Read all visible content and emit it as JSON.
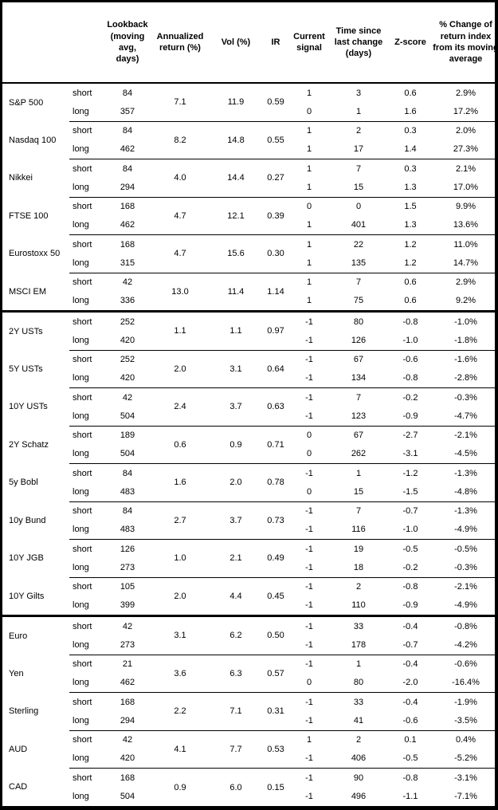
{
  "table": {
    "headers": {
      "asset": "",
      "horizon": "",
      "lookback": "Lookback (moving avg, days)",
      "annualized_return": "Annualized return (%)",
      "vol": "Vol (%)",
      "ir": "IR",
      "signal": "Current signal",
      "time_since": "Time since last change (days)",
      "zscore": "Z-score",
      "pct_change": "% Change of return index from its moving average"
    },
    "horizon_labels": {
      "short": "short",
      "long": "long"
    },
    "groups": [
      {
        "asset": "S&P 500",
        "annualized_return": "7.1",
        "vol": "11.9",
        "ir": "0.59",
        "section_end": false,
        "short": {
          "lookback": "84",
          "signal": "1",
          "time": "3",
          "zscore": "0.6",
          "pct_change": "2.9%"
        },
        "long": {
          "lookback": "357",
          "signal": "0",
          "time": "1",
          "zscore": "1.6",
          "pct_change": "17.2%"
        }
      },
      {
        "asset": "Nasdaq 100",
        "annualized_return": "8.2",
        "vol": "14.8",
        "ir": "0.55",
        "section_end": false,
        "short": {
          "lookback": "84",
          "signal": "1",
          "time": "2",
          "zscore": "0.3",
          "pct_change": "2.0%"
        },
        "long": {
          "lookback": "462",
          "signal": "1",
          "time": "17",
          "zscore": "1.4",
          "pct_change": "27.3%"
        }
      },
      {
        "asset": "Nikkei",
        "annualized_return": "4.0",
        "vol": "14.4",
        "ir": "0.27",
        "section_end": false,
        "short": {
          "lookback": "84",
          "signal": "1",
          "time": "7",
          "zscore": "0.3",
          "pct_change": "2.1%"
        },
        "long": {
          "lookback": "294",
          "signal": "1",
          "time": "15",
          "zscore": "1.3",
          "pct_change": "17.0%"
        }
      },
      {
        "asset": "FTSE 100",
        "annualized_return": "4.7",
        "vol": "12.1",
        "ir": "0.39",
        "section_end": false,
        "short": {
          "lookback": "168",
          "signal": "0",
          "time": "0",
          "zscore": "1.5",
          "pct_change": "9.9%"
        },
        "long": {
          "lookback": "462",
          "signal": "1",
          "time": "401",
          "zscore": "1.3",
          "pct_change": "13.6%"
        }
      },
      {
        "asset": "Eurostoxx 50",
        "annualized_return": "4.7",
        "vol": "15.6",
        "ir": "0.30",
        "section_end": false,
        "short": {
          "lookback": "168",
          "signal": "1",
          "time": "22",
          "zscore": "1.2",
          "pct_change": "11.0%"
        },
        "long": {
          "lookback": "315",
          "signal": "1",
          "time": "135",
          "zscore": "1.2",
          "pct_change": "14.7%"
        }
      },
      {
        "asset": "MSCI EM",
        "annualized_return": "13.0",
        "vol": "11.4",
        "ir": "1.14",
        "section_end": true,
        "short": {
          "lookback": "42",
          "signal": "1",
          "time": "7",
          "zscore": "0.6",
          "pct_change": "2.9%"
        },
        "long": {
          "lookback": "336",
          "signal": "1",
          "time": "75",
          "zscore": "0.6",
          "pct_change": "9.2%"
        }
      },
      {
        "asset": "2Y USTs",
        "annualized_return": "1.1",
        "vol": "1.1",
        "ir": "0.97",
        "section_end": false,
        "short": {
          "lookback": "252",
          "signal": "-1",
          "time": "80",
          "zscore": "-0.8",
          "pct_change": "-1.0%"
        },
        "long": {
          "lookback": "420",
          "signal": "-1",
          "time": "126",
          "zscore": "-1.0",
          "pct_change": "-1.8%"
        }
      },
      {
        "asset": "5Y USTs",
        "annualized_return": "2.0",
        "vol": "3.1",
        "ir": "0.64",
        "section_end": false,
        "short": {
          "lookback": "252",
          "signal": "-1",
          "time": "67",
          "zscore": "-0.6",
          "pct_change": "-1.6%"
        },
        "long": {
          "lookback": "420",
          "signal": "-1",
          "time": "134",
          "zscore": "-0.8",
          "pct_change": "-2.8%"
        }
      },
      {
        "asset": "10Y USTs",
        "annualized_return": "2.4",
        "vol": "3.7",
        "ir": "0.63",
        "section_end": false,
        "short": {
          "lookback": "42",
          "signal": "-1",
          "time": "7",
          "zscore": "-0.2",
          "pct_change": "-0.3%"
        },
        "long": {
          "lookback": "504",
          "signal": "-1",
          "time": "123",
          "zscore": "-0.9",
          "pct_change": "-4.7%"
        }
      },
      {
        "asset": "2Y Schatz",
        "annualized_return": "0.6",
        "vol": "0.9",
        "ir": "0.71",
        "section_end": false,
        "short": {
          "lookback": "189",
          "signal": "0",
          "time": "67",
          "zscore": "-2.7",
          "pct_change": "-2.1%"
        },
        "long": {
          "lookback": "504",
          "signal": "0",
          "time": "262",
          "zscore": "-3.1",
          "pct_change": "-4.5%"
        }
      },
      {
        "asset": "5y Bobl",
        "annualized_return": "1.6",
        "vol": "2.0",
        "ir": "0.78",
        "section_end": false,
        "short": {
          "lookback": "84",
          "signal": "-1",
          "time": "1",
          "zscore": "-1.2",
          "pct_change": "-1.3%"
        },
        "long": {
          "lookback": "483",
          "signal": "0",
          "time": "15",
          "zscore": "-1.5",
          "pct_change": "-4.8%"
        }
      },
      {
        "asset": "10y Bund",
        "annualized_return": "2.7",
        "vol": "3.7",
        "ir": "0.73",
        "section_end": false,
        "short": {
          "lookback": "84",
          "signal": "-1",
          "time": "7",
          "zscore": "-0.7",
          "pct_change": "-1.3%"
        },
        "long": {
          "lookback": "483",
          "signal": "-1",
          "time": "116",
          "zscore": "-1.0",
          "pct_change": "-4.9%"
        }
      },
      {
        "asset": "10Y JGB",
        "annualized_return": "1.0",
        "vol": "2.1",
        "ir": "0.49",
        "section_end": false,
        "short": {
          "lookback": "126",
          "signal": "-1",
          "time": "19",
          "zscore": "-0.5",
          "pct_change": "-0.5%"
        },
        "long": {
          "lookback": "273",
          "signal": "-1",
          "time": "18",
          "zscore": "-0.2",
          "pct_change": "-0.3%"
        }
      },
      {
        "asset": "10Y Gilts",
        "annualized_return": "2.0",
        "vol": "4.4",
        "ir": "0.45",
        "section_end": true,
        "short": {
          "lookback": "105",
          "signal": "-1",
          "time": "2",
          "zscore": "-0.8",
          "pct_change": "-2.1%"
        },
        "long": {
          "lookback": "399",
          "signal": "-1",
          "time": "110",
          "zscore": "-0.9",
          "pct_change": "-4.9%"
        }
      },
      {
        "asset": "Euro",
        "annualized_return": "3.1",
        "vol": "6.2",
        "ir": "0.50",
        "section_end": false,
        "short": {
          "lookback": "42",
          "signal": "-1",
          "time": "33",
          "zscore": "-0.4",
          "pct_change": "-0.8%"
        },
        "long": {
          "lookback": "273",
          "signal": "-1",
          "time": "178",
          "zscore": "-0.7",
          "pct_change": "-4.2%"
        }
      },
      {
        "asset": "Yen",
        "annualized_return": "3.6",
        "vol": "6.3",
        "ir": "0.57",
        "section_end": false,
        "short": {
          "lookback": "21",
          "signal": "-1",
          "time": "1",
          "zscore": "-0.4",
          "pct_change": "-0.6%"
        },
        "long": {
          "lookback": "462",
          "signal": "0",
          "time": "80",
          "zscore": "-2.0",
          "pct_change": "-16.4%"
        }
      },
      {
        "asset": "Sterling",
        "annualized_return": "2.2",
        "vol": "7.1",
        "ir": "0.31",
        "section_end": false,
        "short": {
          "lookback": "168",
          "signal": "-1",
          "time": "33",
          "zscore": "-0.4",
          "pct_change": "-1.9%"
        },
        "long": {
          "lookback": "294",
          "signal": "-1",
          "time": "41",
          "zscore": "-0.6",
          "pct_change": "-3.5%"
        }
      },
      {
        "asset": "AUD",
        "annualized_return": "4.1",
        "vol": "7.7",
        "ir": "0.53",
        "section_end": false,
        "short": {
          "lookback": "42",
          "signal": "1",
          "time": "2",
          "zscore": "0.1",
          "pct_change": "0.4%"
        },
        "long": {
          "lookback": "420",
          "signal": "-1",
          "time": "406",
          "zscore": "-0.5",
          "pct_change": "-5.2%"
        }
      },
      {
        "asset": "CAD",
        "annualized_return": "0.9",
        "vol": "6.0",
        "ir": "0.15",
        "section_end": false,
        "short": {
          "lookback": "168",
          "signal": "-1",
          "time": "90",
          "zscore": "-0.8",
          "pct_change": "-3.1%"
        },
        "long": {
          "lookback": "504",
          "signal": "-1",
          "time": "496",
          "zscore": "-1.1",
          "pct_change": "-7.1%"
        }
      }
    ]
  },
  "colors": {
    "text": "#000000",
    "border": "#000000",
    "background": "#ffffff"
  }
}
